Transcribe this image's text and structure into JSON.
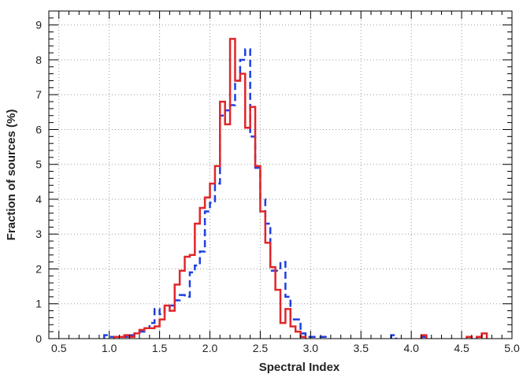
{
  "chart_data": {
    "type": "histogram",
    "xlabel": "Spectral Index",
    "ylabel": "Fraction of sources (%)",
    "xlim": [
      0.4,
      5.0
    ],
    "ylim": [
      0,
      9.4
    ],
    "xticks": [
      "0.5",
      "1.0",
      "1.5",
      "2.0",
      "2.5",
      "3.0",
      "3.5",
      "4.0",
      "4.5",
      "5.0"
    ],
    "yticks": [
      "0",
      "1",
      "2",
      "3",
      "4",
      "5",
      "6",
      "7",
      "8",
      "9"
    ],
    "grid": true,
    "bin_width": 0.05,
    "series": [
      {
        "color": "#1f3fe0",
        "style": "dashed",
        "bins": [
          [
            0.95,
            0.1
          ],
          [
            1.0,
            0.05
          ],
          [
            1.05,
            0.05
          ],
          [
            1.1,
            0.05
          ],
          [
            1.15,
            0.05
          ],
          [
            1.2,
            0.1
          ],
          [
            1.25,
            0.15
          ],
          [
            1.3,
            0.2
          ],
          [
            1.35,
            0.3
          ],
          [
            1.4,
            0.45
          ],
          [
            1.45,
            0.85
          ],
          [
            1.5,
            0.7
          ],
          [
            1.55,
            0.9
          ],
          [
            1.6,
            0.95
          ],
          [
            1.65,
            1.1
          ],
          [
            1.7,
            1.25
          ],
          [
            1.75,
            1.2
          ],
          [
            1.8,
            1.9
          ],
          [
            1.85,
            2.1
          ],
          [
            1.9,
            2.5
          ],
          [
            1.95,
            3.65
          ],
          [
            2.0,
            3.9
          ],
          [
            2.05,
            4.45
          ],
          [
            2.1,
            6.4
          ],
          [
            2.15,
            6.55
          ],
          [
            2.2,
            6.7
          ],
          [
            2.25,
            7.4
          ],
          [
            2.3,
            8.0
          ],
          [
            2.35,
            8.3
          ],
          [
            2.4,
            5.8
          ],
          [
            2.45,
            4.9
          ],
          [
            2.5,
            4.0
          ],
          [
            2.55,
            3.3
          ],
          [
            2.6,
            1.95
          ],
          [
            2.65,
            1.95
          ],
          [
            2.7,
            2.2
          ],
          [
            2.75,
            1.2
          ],
          [
            2.8,
            0.55
          ],
          [
            2.85,
            0.55
          ],
          [
            2.9,
            0.15
          ],
          [
            2.95,
            0.05
          ],
          [
            3.0,
            0.05
          ],
          [
            3.05,
            0.05
          ],
          [
            3.1,
            0.05
          ],
          [
            3.8,
            0.1
          ],
          [
            4.1,
            0.05
          ]
        ]
      },
      {
        "color": "#e0262a",
        "style": "solid",
        "bins": [
          [
            1.05,
            0.05
          ],
          [
            1.1,
            0.05
          ],
          [
            1.15,
            0.1
          ],
          [
            1.2,
            0.05
          ],
          [
            1.25,
            0.15
          ],
          [
            1.3,
            0.25
          ],
          [
            1.35,
            0.3
          ],
          [
            1.4,
            0.3
          ],
          [
            1.45,
            0.35
          ],
          [
            1.5,
            0.55
          ],
          [
            1.55,
            0.95
          ],
          [
            1.6,
            0.8
          ],
          [
            1.65,
            1.55
          ],
          [
            1.7,
            1.95
          ],
          [
            1.75,
            2.35
          ],
          [
            1.8,
            2.4
          ],
          [
            1.85,
            3.3
          ],
          [
            1.9,
            3.75
          ],
          [
            1.95,
            4.05
          ],
          [
            2.0,
            4.45
          ],
          [
            2.05,
            4.95
          ],
          [
            2.1,
            6.8
          ],
          [
            2.15,
            6.15
          ],
          [
            2.2,
            8.6
          ],
          [
            2.25,
            7.4
          ],
          [
            2.3,
            7.6
          ],
          [
            2.35,
            6.05
          ],
          [
            2.4,
            6.65
          ],
          [
            2.45,
            4.95
          ],
          [
            2.5,
            3.65
          ],
          [
            2.55,
            2.75
          ],
          [
            2.6,
            2.05
          ],
          [
            2.65,
            1.4
          ],
          [
            2.7,
            0.45
          ],
          [
            2.75,
            0.85
          ],
          [
            2.8,
            0.35
          ],
          [
            2.85,
            0.2
          ],
          [
            2.9,
            0.05
          ],
          [
            4.1,
            0.1
          ],
          [
            4.55,
            0.05
          ],
          [
            4.65,
            0.05
          ],
          [
            4.7,
            0.15
          ]
        ]
      }
    ]
  }
}
